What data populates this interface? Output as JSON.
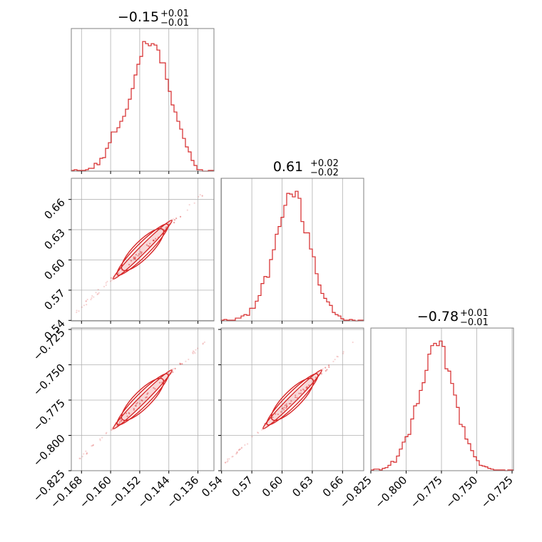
{
  "chart_data": {
    "type": "corner",
    "color": "#d62728",
    "params": [
      {
        "median": "−0.15",
        "plus": "+0.01",
        "minus": "−0.01",
        "range": [
          -0.1708,
          -0.1316
        ],
        "ticks": [
          -0.168,
          -0.16,
          -0.152,
          -0.144,
          -0.136
        ],
        "tick_labels": [
          "−0.168",
          "−0.160",
          "−0.152",
          "−0.144",
          "−0.136"
        ]
      },
      {
        "median": "0.61",
        "plus": "+0.02",
        "minus": "−0.02",
        "range": [
          0.5395,
          0.681
        ],
        "ticks": [
          0.54,
          0.57,
          0.6,
          0.63,
          0.66
        ],
        "tick_labels": [
          "0.54",
          "0.57",
          "0.60",
          "0.63",
          "0.66"
        ]
      },
      {
        "median": "−0.78",
        "plus": "+0.01",
        "minus": "−0.01",
        "range": [
          -0.825,
          -0.724
        ],
        "ticks": [
          -0.825,
          -0.8,
          -0.775,
          -0.75,
          -0.725
        ],
        "tick_labels": [
          "−0.825",
          "−0.800",
          "−0.775",
          "−0.750",
          "−0.725"
        ]
      }
    ],
    "histograms": [
      {
        "param": 0,
        "counts": [
          1,
          2,
          1,
          1,
          1,
          2,
          4,
          4,
          11,
          9,
          18,
          19,
          32,
          40,
          55,
          55,
          61,
          70,
          77,
          87,
          101,
          116,
          135,
          150,
          161,
          182,
          179,
          176,
          179,
          177,
          170,
          152,
          152,
          129,
          112,
          93,
          83,
          70,
          59,
          46,
          34,
          27,
          15,
          8,
          2,
          2,
          0,
          0,
          1,
          1
        ]
      },
      {
        "param": 1,
        "counts": [
          1,
          2,
          1,
          1,
          1,
          4,
          4,
          7,
          9,
          8,
          18,
          18,
          28,
          36,
          53,
          63,
          62,
          87,
          101,
          123,
          134,
          147,
          164,
          181,
          180,
          176,
          184,
          174,
          141,
          125,
          125,
          102,
          91,
          67,
          51,
          39,
          32,
          27,
          22,
          12,
          9,
          7,
          3,
          1,
          1,
          2,
          1,
          0,
          1,
          1
        ]
      },
      {
        "param": 2,
        "counts": [
          1,
          2,
          2,
          1,
          3,
          4,
          7,
          12,
          11,
          19,
          28,
          37,
          44,
          47,
          67,
          84,
          87,
          104,
          114,
          130,
          151,
          162,
          165,
          162,
          168,
          161,
          132,
          129,
          113,
          98,
          82,
          60,
          57,
          41,
          35,
          26,
          18,
          13,
          7,
          6,
          5,
          3,
          2,
          1,
          1,
          1,
          1,
          0,
          1,
          1
        ]
      }
    ],
    "contour_panels": [
      {
        "x_param": 0,
        "y_param": 1
      },
      {
        "x_param": 0,
        "y_param": 2
      },
      {
        "x_param": 1,
        "y_param": 2
      }
    ]
  }
}
